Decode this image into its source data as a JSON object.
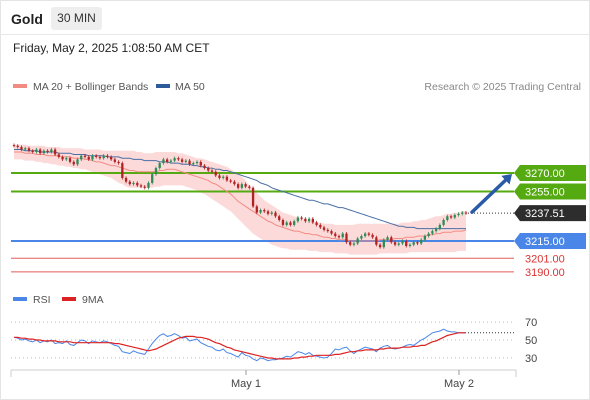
{
  "header": {
    "instrument": "Gold",
    "timeframe": "30 MIN",
    "datetime": "Friday, May 2, 2025 1:08:50 AM CET"
  },
  "colors": {
    "price_up": "#2e8b57",
    "price_down": "#b22222",
    "ma20": "#f28b82",
    "bollinger_fill": "#fbd3d3",
    "ma50": "#4a6fa5",
    "resistance": "#55aa11",
    "support": "#4a86e8",
    "support_minor": "#dd3333",
    "current_price_box": "#2d2d2d",
    "arrow": "#2a5aa8",
    "rsi": "#4a86e8",
    "rsi_ma": "#dd2222"
  },
  "chart_data": [
    {
      "type": "candlestick",
      "legend": [
        {
          "label": "MA 20 + Bollinger Bands",
          "color": "#f28b82"
        },
        {
          "label": "MA 50",
          "color": "#2d5a9a"
        }
      ],
      "source_note": "Research © 2025 Trading Central",
      "x_ticks": [
        "May 1",
        "May 2"
      ],
      "ylim": [
        3184,
        3296
      ],
      "levels": [
        {
          "value": 3270.0,
          "label": "3270.00",
          "kind": "resistance"
        },
        {
          "value": 3255.0,
          "label": "3255.00",
          "kind": "resistance"
        },
        {
          "value": 3215.0,
          "label": "3215.00",
          "kind": "support"
        },
        {
          "value": 3201.0,
          "label": "3201.00",
          "kind": "support-minor"
        },
        {
          "value": 3190.0,
          "label": "3190.00",
          "kind": "support-minor"
        }
      ],
      "current_price": {
        "value": 3237.51,
        "label": "3237.51"
      },
      "projection": {
        "from": 3237.51,
        "to": 3270.0
      },
      "close": [
        3292,
        3291,
        3289,
        3290,
        3288,
        3287,
        3289,
        3286,
        3288,
        3287,
        3289,
        3285,
        3283,
        3281,
        3282,
        3279,
        3277,
        3281,
        3284,
        3283,
        3281,
        3284,
        3283,
        3282,
        3284,
        3283,
        3281,
        3279,
        3278,
        3266,
        3263,
        3261,
        3262,
        3260,
        3259,
        3258,
        3262,
        3269,
        3274,
        3278,
        3281,
        3279,
        3280,
        3282,
        3281,
        3279,
        3280,
        3277,
        3278,
        3279,
        3276,
        3274,
        3272,
        3271,
        3268,
        3266,
        3267,
        3264,
        3263,
        3261,
        3258,
        3261,
        3259,
        3258,
        3243,
        3238,
        3240,
        3239,
        3237,
        3238,
        3235,
        3232,
        3228,
        3230,
        3228,
        3231,
        3234,
        3233,
        3231,
        3233,
        3230,
        3228,
        3226,
        3224,
        3223,
        3221,
        3219,
        3218,
        3221,
        3214,
        3212,
        3213,
        3217,
        3219,
        3221,
        3220,
        3218,
        3212,
        3210,
        3216,
        3218,
        3214,
        3212,
        3213,
        3215,
        3211,
        3212,
        3214,
        3213,
        3216,
        3219,
        3221,
        3223,
        3225,
        3228,
        3232,
        3235,
        3234,
        3236,
        3237,
        3238,
        3237.5
      ],
      "ma20": [
        3287,
        3287,
        3287,
        3286,
        3286,
        3286,
        3285,
        3285,
        3285,
        3284,
        3284,
        3284,
        3284,
        3283,
        3283,
        3283,
        3282,
        3282,
        3282,
        3281,
        3281,
        3280,
        3279,
        3279,
        3278,
        3277,
        3276,
        3276,
        3275,
        3274,
        3273,
        3272,
        3272,
        3271,
        3271,
        3271,
        3271,
        3271,
        3271,
        3272,
        3272,
        3273,
        3273,
        3273,
        3272,
        3271,
        3270,
        3269,
        3268,
        3267,
        3266,
        3265,
        3264,
        3262,
        3261,
        3259,
        3257,
        3255,
        3253,
        3250,
        3247,
        3245,
        3243,
        3241,
        3239,
        3237,
        3235,
        3233,
        3231,
        3230,
        3228,
        3227,
        3226,
        3225,
        3224,
        3223,
        3223,
        3222,
        3221,
        3221,
        3220,
        3220,
        3219,
        3218,
        3218,
        3217,
        3217,
        3216,
        3216,
        3216,
        3215,
        3215,
        3215,
        3215,
        3215,
        3215,
        3215,
        3215,
        3216,
        3216,
        3216,
        3216,
        3217,
        3217,
        3217,
        3218,
        3218,
        3218,
        3219,
        3219,
        3219,
        3220,
        3220,
        3221,
        3221,
        3222,
        3222,
        3222,
        3223,
        3223,
        3223,
        3224
      ],
      "bb_upper": [
        3293,
        3293,
        3293,
        3293,
        3292,
        3292,
        3292,
        3292,
        3292,
        3291,
        3291,
        3291,
        3291,
        3290,
        3290,
        3290,
        3290,
        3290,
        3290,
        3289,
        3289,
        3289,
        3289,
        3289,
        3288,
        3288,
        3288,
        3288,
        3288,
        3288,
        3288,
        3288,
        3288,
        3287,
        3287,
        3286,
        3286,
        3286,
        3287,
        3287,
        3287,
        3287,
        3287,
        3287,
        3286,
        3286,
        3285,
        3284,
        3283,
        3282,
        3282,
        3281,
        3280,
        3279,
        3278,
        3277,
        3276,
        3275,
        3273,
        3271,
        3269,
        3267,
        3264,
        3260,
        3257,
        3254,
        3251,
        3248,
        3246,
        3244,
        3242,
        3240,
        3238,
        3237,
        3236,
        3235,
        3234,
        3233,
        3232,
        3231,
        3231,
        3230,
        3230,
        3229,
        3229,
        3229,
        3228,
        3228,
        3228,
        3228,
        3228,
        3228,
        3229,
        3229,
        3229,
        3229,
        3229,
        3229,
        3229,
        3229,
        3229,
        3229,
        3229,
        3229,
        3230,
        3230,
        3230,
        3231,
        3231,
        3232,
        3232,
        3233,
        3234,
        3235,
        3235,
        3236,
        3237,
        3237,
        3238,
        3238,
        3239,
        3239
      ],
      "bb_lower": [
        3281,
        3281,
        3281,
        3280,
        3280,
        3280,
        3279,
        3279,
        3278,
        3278,
        3277,
        3277,
        3276,
        3276,
        3275,
        3275,
        3274,
        3274,
        3273,
        3273,
        3272,
        3271,
        3270,
        3269,
        3268,
        3267,
        3266,
        3264,
        3262,
        3261,
        3259,
        3258,
        3258,
        3258,
        3258,
        3258,
        3258,
        3258,
        3259,
        3259,
        3260,
        3260,
        3260,
        3260,
        3260,
        3260,
        3259,
        3258,
        3257,
        3256,
        3254,
        3253,
        3251,
        3249,
        3247,
        3245,
        3243,
        3241,
        3239,
        3236,
        3233,
        3230,
        3227,
        3224,
        3221,
        3219,
        3217,
        3215,
        3214,
        3212,
        3211,
        3210,
        3209,
        3209,
        3208,
        3208,
        3208,
        3208,
        3208,
        3207,
        3207,
        3207,
        3206,
        3206,
        3206,
        3206,
        3205,
        3205,
        3205,
        3205,
        3204,
        3204,
        3204,
        3204,
        3204,
        3204,
        3204,
        3204,
        3205,
        3205,
        3205,
        3205,
        3205,
        3205,
        3205,
        3205,
        3206,
        3206,
        3206,
        3206,
        3206,
        3206,
        3206,
        3206,
        3206,
        3206,
        3206,
        3206,
        3206,
        3207,
        3207,
        3207
      ],
      "ma50": [
        3289,
        3289,
        3289,
        3288,
        3288,
        3288,
        3288,
        3287,
        3287,
        3287,
        3287,
        3287,
        3286,
        3286,
        3286,
        3286,
        3285,
        3285,
        3285,
        3285,
        3284,
        3284,
        3284,
        3284,
        3284,
        3283,
        3283,
        3283,
        3283,
        3282,
        3282,
        3282,
        3281,
        3281,
        3281,
        3280,
        3280,
        3280,
        3280,
        3279,
        3279,
        3279,
        3278,
        3278,
        3278,
        3277,
        3277,
        3277,
        3276,
        3276,
        3275,
        3275,
        3274,
        3274,
        3273,
        3273,
        3272,
        3272,
        3271,
        3270,
        3269,
        3268,
        3267,
        3266,
        3265,
        3264,
        3262,
        3261,
        3260,
        3258,
        3257,
        3256,
        3255,
        3254,
        3253,
        3252,
        3251,
        3250,
        3249,
        3248,
        3248,
        3247,
        3246,
        3245,
        3245,
        3244,
        3243,
        3242,
        3242,
        3241,
        3240,
        3239,
        3238,
        3237,
        3236,
        3235,
        3234,
        3233,
        3232,
        3231,
        3230,
        3229,
        3228,
        3227,
        3227,
        3226,
        3226,
        3226,
        3225,
        3225,
        3225,
        3225,
        3225,
        3225,
        3225,
        3225,
        3225,
        3225,
        3225,
        3225,
        3225,
        3225
      ]
    },
    {
      "type": "line",
      "legend": [
        {
          "label": "RSI",
          "color": "#4a86e8"
        },
        {
          "label": "9MA",
          "color": "#dd2222"
        }
      ],
      "ylim": [
        20,
        80
      ],
      "y_ticks": [
        70,
        50,
        30
      ],
      "rsi": [
        53,
        52,
        50,
        51,
        49,
        48,
        50,
        47,
        49,
        48,
        50,
        46,
        47,
        46,
        49,
        45,
        44,
        47,
        50,
        49,
        46,
        49,
        48,
        47,
        49,
        48,
        46,
        44,
        43,
        37,
        36,
        35,
        38,
        36,
        35,
        34,
        40,
        46,
        51,
        55,
        57,
        54,
        55,
        57,
        55,
        52,
        53,
        49,
        50,
        51,
        47,
        45,
        43,
        42,
        39,
        38,
        40,
        36,
        35,
        33,
        31,
        36,
        33,
        32,
        29,
        27,
        30,
        29,
        27,
        28,
        28,
        29,
        30,
        32,
        31,
        34,
        37,
        36,
        34,
        36,
        33,
        32,
        31,
        30,
        31,
        35,
        40,
        39,
        41,
        42,
        38,
        35,
        38,
        40,
        42,
        41,
        40,
        37,
        41,
        43,
        44,
        41,
        40,
        41,
        42,
        44,
        45,
        44,
        47,
        50,
        52,
        55,
        58,
        59,
        60,
        62,
        60,
        59,
        59,
        58,
        58,
        58
      ],
      "rsi_ma": [
        53,
        53,
        52,
        52,
        51,
        51,
        50,
        50,
        49,
        49,
        49,
        49,
        48,
        48,
        48,
        48,
        47,
        47,
        47,
        47,
        47,
        47,
        47,
        47,
        47,
        47,
        47,
        46,
        46,
        45,
        44,
        43,
        42,
        41,
        40,
        39,
        38,
        39,
        40,
        42,
        44,
        46,
        48,
        50,
        52,
        53,
        54,
        54,
        54,
        53,
        53,
        52,
        51,
        49,
        47,
        46,
        44,
        42,
        41,
        39,
        38,
        37,
        36,
        35,
        34,
        33,
        32,
        31,
        30,
        30,
        29,
        29,
        29,
        29,
        29,
        30,
        30,
        31,
        31,
        32,
        32,
        33,
        33,
        33,
        33,
        33,
        34,
        34,
        35,
        36,
        37,
        37,
        38,
        38,
        39,
        39,
        39,
        39,
        40,
        40,
        41,
        41,
        41,
        41,
        42,
        42,
        42,
        43,
        43,
        44,
        44,
        46,
        48,
        49,
        51,
        53,
        55,
        56,
        57,
        58,
        58,
        58
      ]
    }
  ]
}
